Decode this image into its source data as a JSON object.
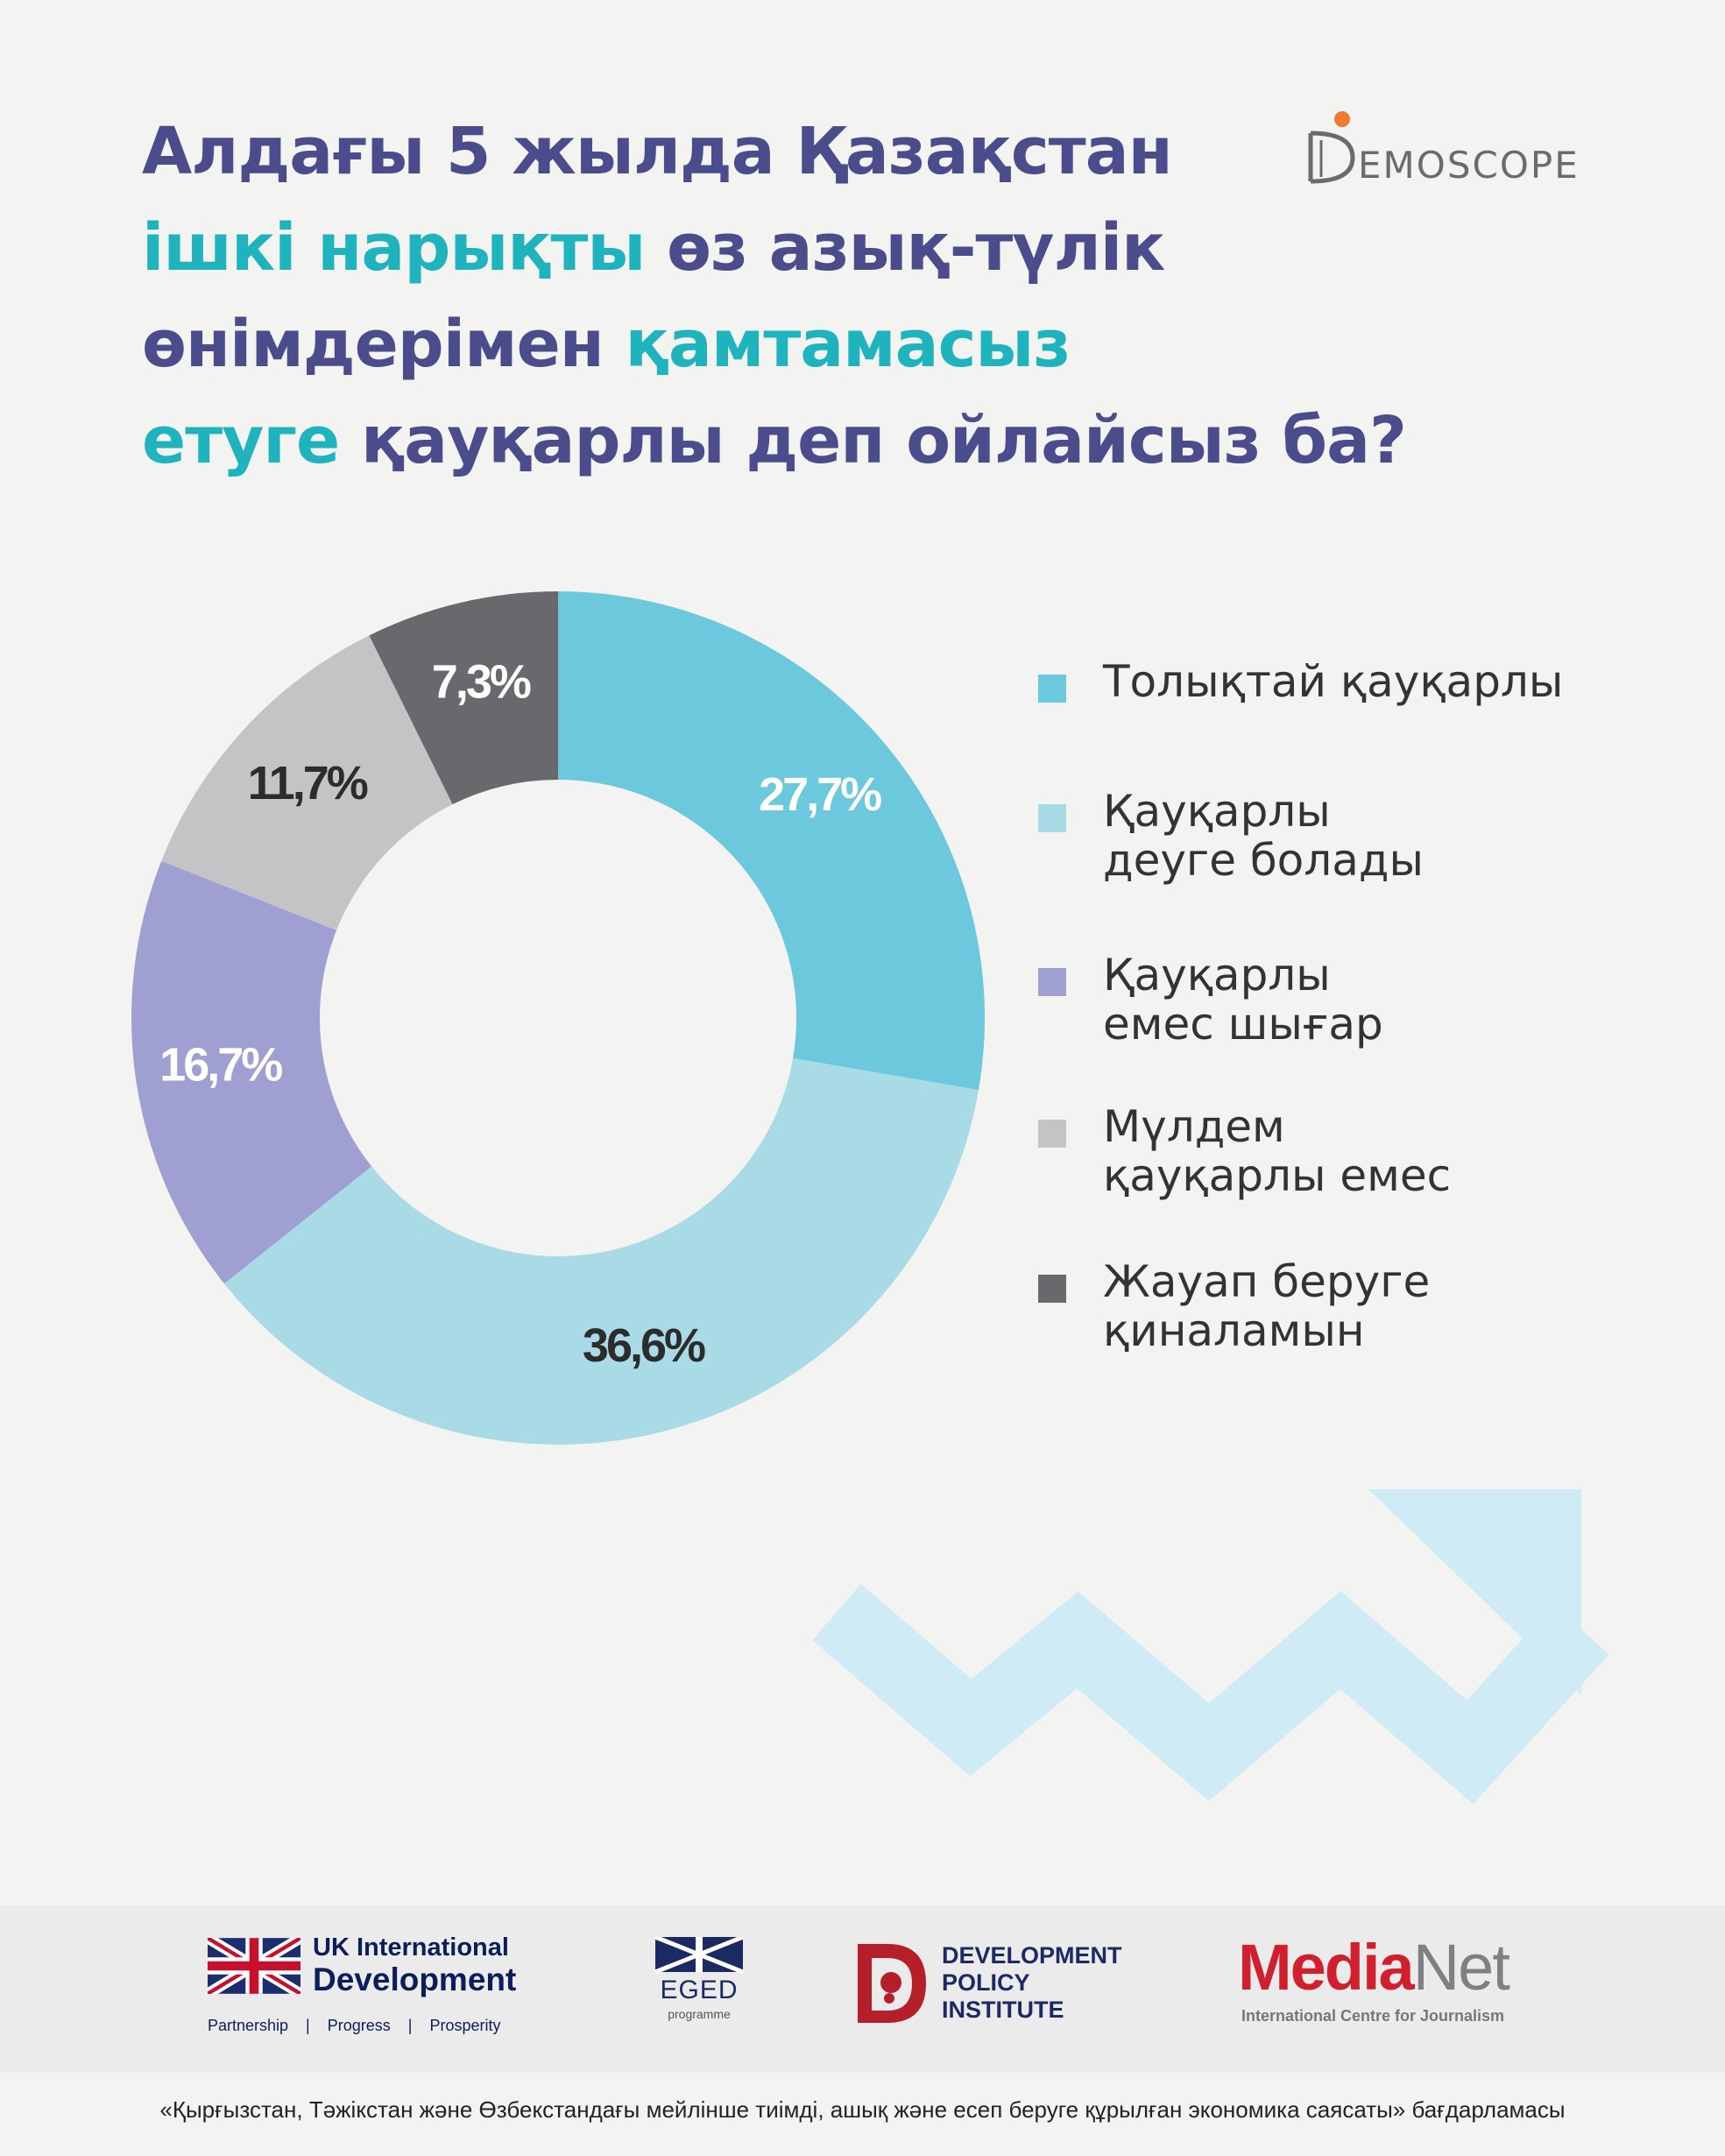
{
  "title": {
    "lines": [
      [
        {
          "text": "Алдағы 5 жылда Қазақстан",
          "hl": false
        }
      ],
      [
        {
          "text": "ішкі нарықты ",
          "hl": true
        },
        {
          "text": "өз азық-түлік",
          "hl": false
        }
      ],
      [
        {
          "text": "өнімдерімен ",
          "hl": false
        },
        {
          "text": "қамтамасыз",
          "hl": true
        }
      ],
      [
        {
          "text": "етуге ",
          "hl": true
        },
        {
          "text": "қауқарлы деп ойлайсыз ба?",
          "hl": false
        }
      ]
    ]
  },
  "brand": {
    "demoscope": "EMOSCOPE"
  },
  "chart_data": {
    "type": "pie",
    "variant": "donut",
    "unit": "%",
    "slices": [
      {
        "label": "Толықтай қауқарлы",
        "value": 27.7,
        "value_label": "27,7%",
        "color": "#6cc8dc",
        "label_color": "#ffffff"
      },
      {
        "label": "Қауқарлы\nдеуге болады",
        "value": 36.6,
        "value_label": "36,6%",
        "color": "#a9dbe7",
        "label_color": "#2c2c2c"
      },
      {
        "label": "Қауқарлы\nемес шығар",
        "value": 16.7,
        "value_label": "16,7%",
        "color": "#a09fd1",
        "label_color": "#ffffff"
      },
      {
        "label": "Мүлдем\nқауқарлы емес",
        "value": 11.7,
        "value_label": "11,7%",
        "color": "#c4c4c6",
        "label_color": "#2c2c2c"
      },
      {
        "label": "Жауап беруге\nқиналамын",
        "value": 7.3,
        "value_label": "7,3%",
        "color": "#69696d",
        "label_color": "#ffffff"
      }
    ],
    "legend_position": "right"
  },
  "decoration": {
    "arrow_color": "#cfecf6"
  },
  "footer": {
    "uk": {
      "line1": "UK International",
      "line2": "Development",
      "tagline": "Partnership    |    Progress    |    Prosperity"
    },
    "eged": {
      "name": "EGED",
      "sub": "programme"
    },
    "dpi": {
      "line1": "DEVELOPMENT",
      "line2": "POLICY",
      "line3": "INSTITUTE"
    },
    "medianet": {
      "part1": "Media",
      "part2": "Net",
      "sub": "International Centre for Journalism"
    },
    "note": "«Қырғызстан, Тәжікстан және Өзбекстандағы мейлінше тиімді, ашық және есеп беруге құрылған экономика саясаты» бағдарламасы"
  }
}
